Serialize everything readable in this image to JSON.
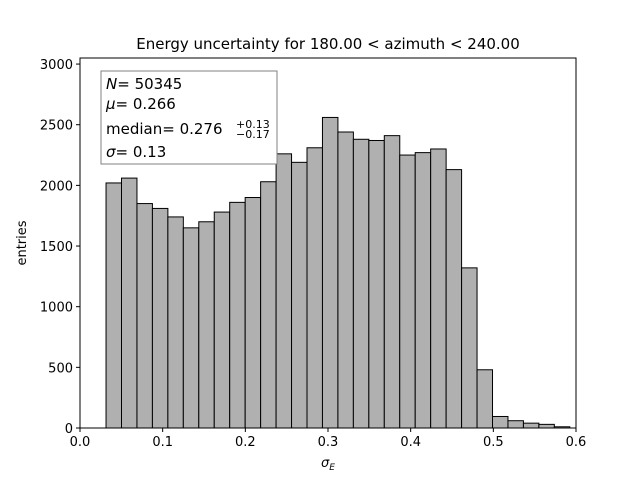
{
  "chart_data": {
    "type": "bar",
    "title": "Energy uncertainty for 180.00 < azimuth < 240.00",
    "xlabel": "σ",
    "xlabel_sub": "E",
    "ylabel": "entries",
    "xlim": [
      0.0,
      0.6
    ],
    "ylim": [
      0,
      3050
    ],
    "xticks": [
      0.0,
      0.1,
      0.2,
      0.3,
      0.4,
      0.5,
      0.6
    ],
    "xtick_labels": [
      "0.0",
      "0.1",
      "0.2",
      "0.3",
      "0.4",
      "0.5",
      "0.6"
    ],
    "yticks": [
      0,
      500,
      1000,
      1500,
      2000,
      2500,
      3000
    ],
    "ytick_labels": [
      "0",
      "500",
      "1000",
      "1500",
      "2000",
      "2500",
      "3000"
    ],
    "bar_color": "#b0b0b0",
    "edge_color": "#000000",
    "bin_edges": [
      0.0315,
      0.0502,
      0.0689,
      0.0876,
      0.1063,
      0.125,
      0.1437,
      0.1624,
      0.1811,
      0.1998,
      0.2185,
      0.2372,
      0.2559,
      0.2746,
      0.2933,
      0.312,
      0.3307,
      0.3494,
      0.3681,
      0.3868,
      0.4055,
      0.4242,
      0.4429,
      0.4616,
      0.4803,
      0.499,
      0.5177,
      0.5364,
      0.5551,
      0.5738,
      0.5925
    ],
    "values": [
      2020,
      2060,
      1850,
      1810,
      1740,
      1650,
      1700,
      1780,
      1860,
      1900,
      2030,
      2260,
      2190,
      2310,
      2560,
      2440,
      2380,
      2370,
      2410,
      2250,
      2270,
      2300,
      2130,
      1320,
      480,
      95,
      60,
      40,
      30,
      10
    ],
    "stats": {
      "n_label": "N",
      "n_value": "= 50345",
      "mu_label": "μ",
      "mu_value": "= 0.266",
      "median_label": "median",
      "median_value": "= 0.276",
      "median_plus": "+0.13",
      "median_minus": "−0.17",
      "sigma_label": "σ",
      "sigma_value": "= 0.13"
    },
    "stats_placement": "upper-left"
  }
}
